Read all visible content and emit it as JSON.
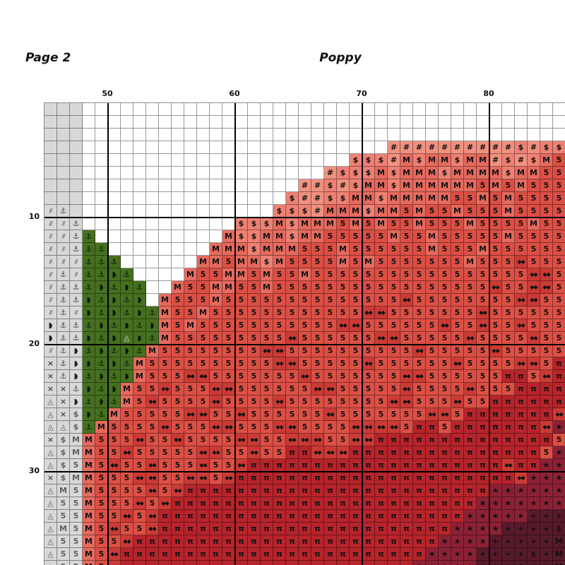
{
  "page": {
    "page_label": "Page 2",
    "title": "Poppy"
  },
  "colors": {
    "grid_line": "rgba(0,0,0,0.40)",
    "bold_line": "#000000",
    "paper": "#ffffff"
  },
  "grid": {
    "cols": 41,
    "rows_count": 37,
    "cell_size": 18,
    "col_labels": [
      {
        "text": "50",
        "col": 5
      },
      {
        "text": "60",
        "col": 15
      },
      {
        "text": "70",
        "col": 25
      },
      {
        "text": "80",
        "col": 35
      }
    ],
    "row_labels": [
      {
        "text": "10",
        "row": 9
      },
      {
        "text": "20",
        "row": 19
      },
      {
        "text": "30",
        "row": 29
      }
    ],
    "bold_cols": [
      5,
      15,
      25,
      35
    ],
    "bold_rows": [
      9,
      19,
      29
    ],
    "legend": {
      ".": {
        "name": "white-empty",
        "symbol": "",
        "bg": "#ffffff",
        "fg": "#111111"
      },
      "g": {
        "name": "gray-blank",
        "symbol": "",
        "bg": "#d8d8d8",
        "fg": "#6e6e6e"
      },
      "/": {
        "name": "gray-slash",
        "symbol": "//",
        "bg": "#d8d8d8",
        "fg": "#5f5f5f"
      },
      "a": {
        "name": "gray-anchor",
        "symbol": "⚓",
        "bg": "#d8d8d8",
        "fg": "#4a4a4a"
      },
      "x": {
        "name": "gray-cross",
        "symbol": "×",
        "bg": "#d8d8d8",
        "fg": "#4a4a4a"
      },
      "t": {
        "name": "gray-triangle",
        "symbol": "◬",
        "bg": "#d8d8d8",
        "fg": "#5f5f5f"
      },
      "l": {
        "name": "gray-moon",
        "symbol": "◗",
        "bg": "#d8d8d8",
        "fg": "#222222"
      },
      "G": {
        "name": "gray-dollar",
        "symbol": "$",
        "bg": "#d8d8d8",
        "fg": "#5f5f5f"
      },
      "N": {
        "name": "gray-m",
        "symbol": "M",
        "bg": "#d8d8d8",
        "fg": "#5f5f5f"
      },
      "F": {
        "name": "gray-5",
        "symbol": "5",
        "bg": "#d8d8d8",
        "fg": "#5f5f5f"
      },
      "A": {
        "name": "green-anchor",
        "symbol": "⚓",
        "bg": "#45701f",
        "fg": "#0b1406"
      },
      "L": {
        "name": "green-moon",
        "symbol": "◗",
        "bg": "#45701f",
        "fg": "#0b1406"
      },
      "W": {
        "name": "green-triangle",
        "symbol": "◬",
        "bg": "#45701f",
        "fg": "#d8d8d8"
      },
      "#": {
        "name": "red-lightest-hash",
        "symbol": "#",
        "bg": "#f19180",
        "fg": "#111111"
      },
      "$": {
        "name": "red-light-dollar",
        "symbol": "$",
        "bg": "#ee8173",
        "fg": "#111111"
      },
      "M": {
        "name": "red-medium-m",
        "symbol": "M",
        "bg": "#e66a5e",
        "fg": "#111111"
      },
      "5": {
        "name": "red-5",
        "symbol": "5",
        "bg": "#dc4f45",
        "fg": "#111111"
      },
      "d": {
        "name": "red-dark-diamonds",
        "symbol": "◆◆",
        "bg": "#cb3a35",
        "fg": "#111111"
      },
      "p": {
        "name": "red-deep-pi",
        "symbol": "π",
        "bg": "#b7242b",
        "fg": "#111111"
      },
      "s": {
        "name": "maroon-star",
        "symbol": "★",
        "bg": "#8c2136",
        "fg": "#111111"
      },
      "+": {
        "name": "dark-plus",
        "symbol": "+",
        "bg": "#571a2b",
        "fg": "#111111"
      },
      "q": {
        "name": "dark-dollar",
        "symbol": "$",
        "bg": "#571a2b",
        "fg": "#111111"
      },
      "n": {
        "name": "dark-m",
        "symbol": "M",
        "bg": "#571a2b",
        "fg": "#111111"
      }
    },
    "rows": [
      "ggg......................................",
      "ggg......................................",
      "ggg......................................",
      "ggg........................##########$#$$",
      "ggg.....................$$$#M$MM$MM#$#$M5",
      "ggg...................#$$$M$MMM$MMMM$MM55",
      "ggg.................##$#$MM$MMMMMM5M5M555",
      "ggg................$##$$MM$MMMMM55M5M5555",
      "/ag...............$$$#MMM$MM5M55M555M5555",
      "//a............$$$M$MMM5M5M55M555M5555M55",
      "//aA..........M$$MM$MM55555M55M55555M5555",
      "//aAA........MMM$MMM555M555555M555M555555",
      "///AAA......MM5MM$M5555M5M5555555M555d555",
      "/a/AALA....M55MM5M55M55555555555555555dd5",
      "/aaALALA..M55MM55M55555555555555555d55dd5",
      "/aaLALAL.M555M55555555555555d55555555dd55",
      "/a/LALALAM55M555555555555dd5555555d555555",
      "laaALALALM5M55555555555dd555555d55d55d555",
      "laaLALWLAM555555555d555555dd55555d5555d55",
      "/alALALAM55555555dd5555555555d55555d55555",
      "xalLALAM5555555555dd55555d555555d5555dd5p",
      "xalALALM555dd5555555d5555555dd555555pp5dp",
      "xxaLALM55d555dd555555dd55555d5555d555pppp",
      "txlALAM5d5555d5555d55555555dd555d55pppppp",
      "txGLAM55555dd55d555555d5555555dd5pppppppd",
      "ttGAM5555d555dd555dd5555dddd5pp5pppppppds",
      "xGNM555d55d5555dd55ddd55ddpppppppppppppp5",
      "tGNM55d55555dd55d55ppdddppppppppppppppp5s",
      "tGFM5d55d555d55dppppppppppppppppppppdppss",
      "xGNM555dd55dd5dppppppppppppppppppppppdsss",
      "tNFM5555d5dppppppppppppppppppppppppssssss",
      "tFFM555d5dppppppppppppppppppppppppsssssss",
      "tFFM55d5dppppppppppppppppppppppppsssss+++",
      "tNFM5d55dpppppppppppppppppppppppssss++++q",
      "tFFM55dppppppppppppppppppppppppssss+++++n",
      "tFFM5dppppppppppppppppppppppppssss++++q+n",
      "tFFM5dpppppppppppppppppppppppsssss+++q++n"
    ]
  }
}
